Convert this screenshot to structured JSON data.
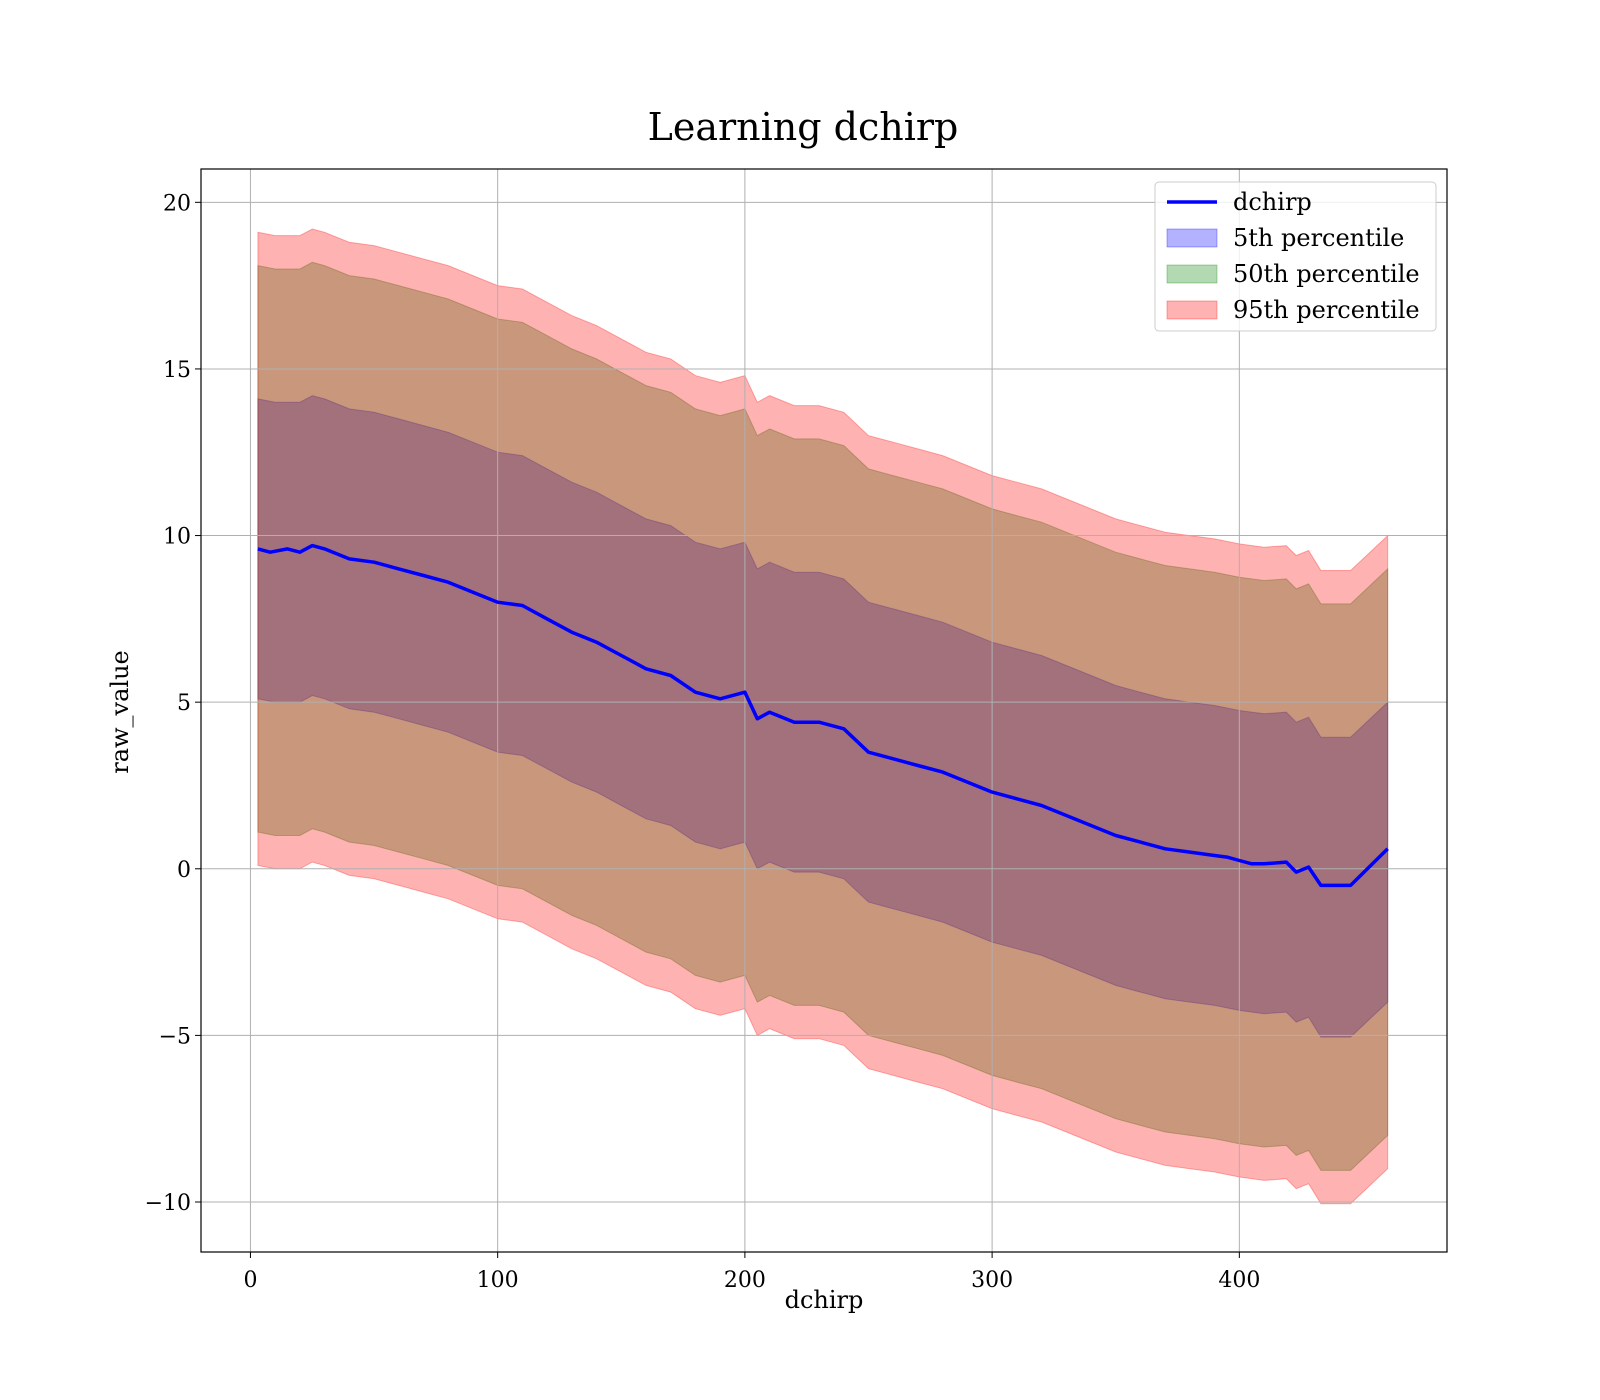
{
  "chart_data": {
    "type": "area",
    "title": "Learning dchirp",
    "xlabel": "dchirp",
    "ylabel": "raw_value",
    "xlim": [
      -20,
      484
    ],
    "ylim": [
      -11.5,
      21
    ],
    "x_ticks": [
      0,
      100,
      200,
      300,
      400
    ],
    "y_ticks": [
      -10,
      -5,
      0,
      5,
      10,
      15,
      20
    ],
    "x_tick_labels": [
      "0",
      "100",
      "200",
      "300",
      "400"
    ],
    "y_tick_labels": [
      "−10",
      "−5",
      "0",
      "5",
      "10",
      "15",
      "20"
    ],
    "grid": true,
    "legend_position": "upper right",
    "legend": [
      "dchirp",
      "5th percentile",
      "50th percentile",
      "95th percentile"
    ],
    "colors": {
      "line": "#0000ff",
      "p5": "#0000ff",
      "p50": "#008000",
      "p95": "#ff0000",
      "grid": "#b0b0b0"
    },
    "series": [
      {
        "name": "dchirp",
        "kind": "line",
        "x": [
          3,
          8,
          15,
          20,
          25,
          30,
          40,
          50,
          60,
          70,
          80,
          90,
          100,
          110,
          120,
          130,
          140,
          150,
          160,
          170,
          180,
          190,
          200,
          205,
          210,
          220,
          230,
          240,
          250,
          260,
          270,
          280,
          290,
          300,
          310,
          320,
          330,
          340,
          350,
          360,
          370,
          380,
          390,
          395,
          400,
          405,
          410,
          419,
          423,
          428,
          433,
          445,
          460
        ],
        "y": [
          9.6,
          9.5,
          9.6,
          9.5,
          9.7,
          9.6,
          9.3,
          9.2,
          9.0,
          8.8,
          8.6,
          8.3,
          8.0,
          7.9,
          7.5,
          7.1,
          6.8,
          6.4,
          6.0,
          5.8,
          5.3,
          5.1,
          5.3,
          4.5,
          4.7,
          4.4,
          4.4,
          4.2,
          3.5,
          3.3,
          3.1,
          2.9,
          2.6,
          2.3,
          2.1,
          1.9,
          1.6,
          1.3,
          1.0,
          0.8,
          0.6,
          0.5,
          0.4,
          0.35,
          0.25,
          0.15,
          0.15,
          0.2,
          -0.1,
          0.05,
          -0.5,
          -0.5,
          0.6
        ]
      },
      {
        "name": "5th percentile",
        "kind": "band",
        "x": [
          3,
          10,
          20,
          25,
          30,
          40,
          50,
          60,
          70,
          80,
          90,
          100,
          110,
          120,
          130,
          140,
          150,
          160,
          170,
          180,
          190,
          200,
          205,
          210,
          220,
          230,
          240,
          250,
          260,
          270,
          280,
          290,
          300,
          310,
          320,
          330,
          340,
          350,
          360,
          370,
          380,
          390,
          400,
          410,
          419,
          423,
          428,
          433,
          445,
          460
        ],
        "upper": [
          14.1,
          14.0,
          14.0,
          14.2,
          14.1,
          13.8,
          13.7,
          13.5,
          13.3,
          13.1,
          12.8,
          12.5,
          12.4,
          12.0,
          11.6,
          11.3,
          10.9,
          10.5,
          10.3,
          9.8,
          9.6,
          9.8,
          9.0,
          9.2,
          8.9,
          8.9,
          8.7,
          8.0,
          7.8,
          7.6,
          7.4,
          7.1,
          6.8,
          6.6,
          6.4,
          6.1,
          5.8,
          5.5,
          5.3,
          5.1,
          5.0,
          4.9,
          4.75,
          4.65,
          4.7,
          4.4,
          4.55,
          3.95,
          3.95,
          5.0
        ],
        "lower": [
          5.1,
          5.0,
          5.0,
          5.2,
          5.1,
          4.8,
          4.7,
          4.5,
          4.3,
          4.1,
          3.8,
          3.5,
          3.4,
          3.0,
          2.6,
          2.3,
          1.9,
          1.5,
          1.3,
          0.8,
          0.6,
          0.8,
          0.0,
          0.2,
          -0.1,
          -0.1,
          -0.3,
          -1.0,
          -1.2,
          -1.4,
          -1.6,
          -1.9,
          -2.2,
          -2.4,
          -2.6,
          -2.9,
          -3.2,
          -3.5,
          -3.7,
          -3.9,
          -4.0,
          -4.1,
          -4.25,
          -4.35,
          -4.3,
          -4.6,
          -4.45,
          -5.05,
          -5.05,
          -4.0
        ]
      },
      {
        "name": "50th percentile",
        "kind": "band",
        "x": [
          3,
          10,
          20,
          25,
          30,
          40,
          50,
          60,
          70,
          80,
          90,
          100,
          110,
          120,
          130,
          140,
          150,
          160,
          170,
          180,
          190,
          200,
          205,
          210,
          220,
          230,
          240,
          250,
          260,
          270,
          280,
          290,
          300,
          310,
          320,
          330,
          340,
          350,
          360,
          370,
          380,
          390,
          400,
          410,
          419,
          423,
          428,
          433,
          445,
          460
        ],
        "upper": [
          18.1,
          18.0,
          18.0,
          18.2,
          18.1,
          17.8,
          17.7,
          17.5,
          17.3,
          17.1,
          16.8,
          16.5,
          16.4,
          16.0,
          15.6,
          15.3,
          14.9,
          14.5,
          14.3,
          13.8,
          13.6,
          13.8,
          13.0,
          13.2,
          12.9,
          12.9,
          12.7,
          12.0,
          11.8,
          11.6,
          11.4,
          11.1,
          10.8,
          10.6,
          10.4,
          10.1,
          9.8,
          9.5,
          9.3,
          9.1,
          9.0,
          8.9,
          8.75,
          8.65,
          8.7,
          8.4,
          8.55,
          7.95,
          7.95,
          9.0
        ],
        "lower": [
          1.1,
          1.0,
          1.0,
          1.2,
          1.1,
          0.8,
          0.7,
          0.5,
          0.3,
          0.1,
          -0.2,
          -0.5,
          -0.6,
          -1.0,
          -1.4,
          -1.7,
          -2.1,
          -2.5,
          -2.7,
          -3.2,
          -3.4,
          -3.2,
          -4.0,
          -3.8,
          -4.1,
          -4.1,
          -4.3,
          -5.0,
          -5.2,
          -5.4,
          -5.6,
          -5.9,
          -6.2,
          -6.4,
          -6.6,
          -6.9,
          -7.2,
          -7.5,
          -7.7,
          -7.9,
          -8.0,
          -8.1,
          -8.25,
          -8.35,
          -8.3,
          -8.6,
          -8.45,
          -9.05,
          -9.05,
          -8.0
        ]
      },
      {
        "name": "95th percentile",
        "kind": "band",
        "x": [
          3,
          10,
          20,
          25,
          30,
          40,
          50,
          60,
          70,
          80,
          90,
          100,
          110,
          120,
          130,
          140,
          150,
          160,
          170,
          180,
          190,
          200,
          205,
          210,
          220,
          230,
          240,
          250,
          260,
          270,
          280,
          290,
          300,
          310,
          320,
          330,
          340,
          350,
          360,
          370,
          380,
          390,
          400,
          410,
          419,
          423,
          428,
          433,
          445,
          460
        ],
        "upper": [
          19.1,
          19.0,
          19.0,
          19.2,
          19.1,
          18.8,
          18.7,
          18.5,
          18.3,
          18.1,
          17.8,
          17.5,
          17.4,
          17.0,
          16.6,
          16.3,
          15.9,
          15.5,
          15.3,
          14.8,
          14.6,
          14.8,
          14.0,
          14.2,
          13.9,
          13.9,
          13.7,
          13.0,
          12.8,
          12.6,
          12.4,
          12.1,
          11.8,
          11.6,
          11.4,
          11.1,
          10.8,
          10.5,
          10.3,
          10.1,
          10.0,
          9.9,
          9.75,
          9.65,
          9.7,
          9.4,
          9.55,
          8.95,
          8.95,
          10.0
        ],
        "lower": [
          0.1,
          0.0,
          0.0,
          0.2,
          0.1,
          -0.2,
          -0.3,
          -0.5,
          -0.7,
          -0.9,
          -1.2,
          -1.5,
          -1.6,
          -2.0,
          -2.4,
          -2.7,
          -3.1,
          -3.5,
          -3.7,
          -4.2,
          -4.4,
          -4.2,
          -5.0,
          -4.8,
          -5.1,
          -5.1,
          -5.3,
          -6.0,
          -6.2,
          -6.4,
          -6.6,
          -6.9,
          -7.2,
          -7.4,
          -7.6,
          -7.9,
          -8.2,
          -8.5,
          -8.7,
          -8.9,
          -9.0,
          -9.1,
          -9.25,
          -9.35,
          -9.3,
          -9.6,
          -9.45,
          -10.05,
          -10.05,
          -9.0
        ]
      }
    ]
  }
}
